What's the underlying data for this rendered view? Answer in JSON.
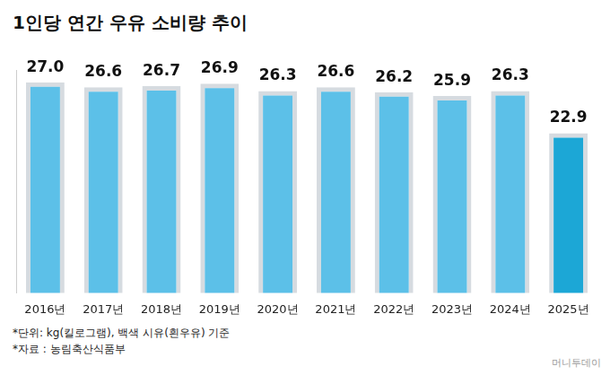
{
  "chart_data": {
    "type": "bar",
    "title": "1인당 연간 우유 소비량 추이",
    "categories": [
      "2016년",
      "2017년",
      "2018년",
      "2019년",
      "2020년",
      "2021년",
      "2022년",
      "2023년",
      "2024년",
      "2025년"
    ],
    "values": [
      27.0,
      26.6,
      26.7,
      26.9,
      26.3,
      26.6,
      26.2,
      25.9,
      26.3,
      22.9
    ],
    "value_labels": [
      "27.0",
      "26.6",
      "26.7",
      "26.9",
      "26.3",
      "26.6",
      "26.2",
      "25.9",
      "26.3",
      "22.9"
    ],
    "colors": [
      "#5cc0e8",
      "#5cc0e8",
      "#5cc0e8",
      "#5cc0e8",
      "#5cc0e8",
      "#5cc0e8",
      "#5cc0e8",
      "#5cc0e8",
      "#5cc0e8",
      "#1ca7d6"
    ],
    "ylim": [
      10,
      28
    ],
    "grid": false,
    "data_labels": true,
    "tick_labels": "x",
    "annotations": [
      "*단위: kg(킬로그램), 백색 시유(흰우유) 기준",
      "*자료 : 농림축산식품부",
      "머니투데이"
    ]
  }
}
